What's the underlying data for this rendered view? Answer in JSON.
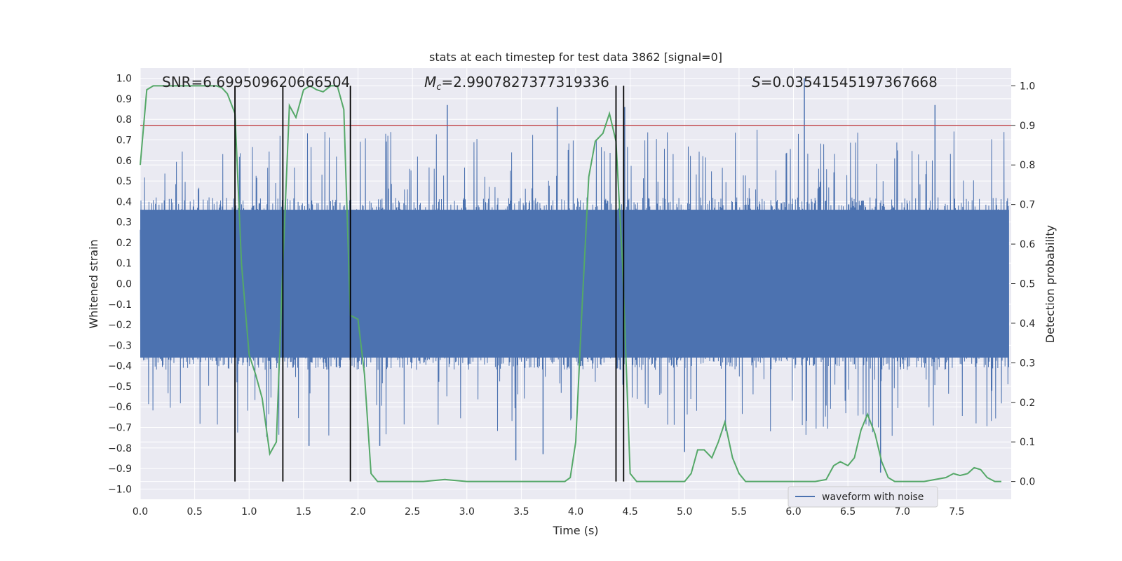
{
  "chart_data": {
    "type": "line",
    "title": "stats at each timestep for test data 3862 [signal=0]",
    "xlabel": "Time (s)",
    "ylabel_left": "Whitened strain",
    "ylabel_right": "Detection probability",
    "xlim": [
      0.0,
      8.0
    ],
    "ylim_left": [
      -1.05,
      1.05
    ],
    "ylim_right": [
      -0.045,
      1.045
    ],
    "x_ticks": [
      0.0,
      0.5,
      1.0,
      1.5,
      2.0,
      2.5,
      3.0,
      3.5,
      4.0,
      4.5,
      5.0,
      5.5,
      6.0,
      6.5,
      7.0,
      7.5
    ],
    "x_tick_labels": [
      "0.0",
      "0.5",
      "1.0",
      "1.5",
      "2.0",
      "2.5",
      "3.0",
      "3.5",
      "4.0",
      "4.5",
      "5.0",
      "5.5",
      "6.0",
      "6.5",
      "7.0",
      "7.5"
    ],
    "y_left_ticks": [
      -1.0,
      -0.9,
      -0.8,
      -0.7,
      -0.6,
      -0.5,
      -0.4,
      -0.3,
      -0.2,
      -0.1,
      0.0,
      0.1,
      0.2,
      0.3,
      0.4,
      0.5,
      0.6,
      0.7,
      0.8,
      0.9,
      1.0
    ],
    "y_left_tick_labels": [
      "−1.0",
      "−0.9",
      "−0.8",
      "−0.7",
      "−0.6",
      "−0.5",
      "−0.4",
      "−0.3",
      "−0.2",
      "−0.1",
      "0.0",
      "0.1",
      "0.2",
      "0.3",
      "0.4",
      "0.5",
      "0.6",
      "0.7",
      "0.8",
      "0.9",
      "1.0"
    ],
    "y_right_ticks": [
      0.0,
      0.1,
      0.2,
      0.3,
      0.4,
      0.5,
      0.6,
      0.7,
      0.8,
      0.9,
      1.0
    ],
    "y_right_tick_labels": [
      "0.0",
      "0.1",
      "0.2",
      "0.3",
      "0.4",
      "0.5",
      "0.6",
      "0.7",
      "0.8",
      "0.9",
      "1.0"
    ],
    "grid": true,
    "legend_position": "bottom-right",
    "annotations": {
      "snr": "SNR=6.699509620666504",
      "mc_symbol": "M",
      "mc_sub": "c",
      "mc_value": "=2.9907827377319336",
      "s_symbol": "S",
      "s_value": "=0.03541545197367668"
    },
    "threshold": {
      "value": 0.9,
      "axis": "right",
      "color": "#c44e52"
    },
    "vertical_lines": [
      0.87,
      1.31,
      1.93,
      4.37,
      4.44
    ],
    "series": [
      {
        "name": "waveform with noise",
        "axis": "left",
        "color": "#4c72b0",
        "kind": "noise",
        "core_amplitude": 0.42,
        "peaks": [
          {
            "t": 2.82,
            "v": 0.87
          },
          {
            "t": 6.1,
            "v": 1.0
          },
          {
            "t": 7.3,
            "v": 0.87
          },
          {
            "t": 3.83,
            "v": 0.86
          },
          {
            "t": 4.45,
            "v": 0.86
          },
          {
            "t": 3.45,
            "v": -0.86
          },
          {
            "t": 6.8,
            "v": -0.92
          },
          {
            "t": 3.7,
            "v": -0.83
          },
          {
            "t": 5.0,
            "v": -0.82
          },
          {
            "t": 1.55,
            "v": -0.79
          },
          {
            "t": 2.2,
            "v": -0.79
          }
        ]
      },
      {
        "name": "",
        "axis": "right",
        "color": "#55a868",
        "x": [
          0.0,
          0.06,
          0.12,
          0.2,
          0.3,
          0.4,
          0.5,
          0.6,
          0.7,
          0.75,
          0.8,
          0.87,
          0.93,
          1.0,
          1.06,
          1.12,
          1.19,
          1.25,
          1.31,
          1.37,
          1.43,
          1.5,
          1.56,
          1.62,
          1.68,
          1.75,
          1.81,
          1.87,
          1.93,
          2.0,
          2.06,
          2.12,
          2.18,
          2.25,
          2.4,
          2.6,
          2.8,
          3.0,
          3.3,
          3.5,
          3.7,
          3.9,
          3.95,
          4.0,
          4.06,
          4.12,
          4.18,
          4.25,
          4.31,
          4.37,
          4.43,
          4.5,
          4.56,
          4.62,
          4.68,
          4.8,
          4.95,
          5.0,
          5.06,
          5.12,
          5.18,
          5.25,
          5.31,
          5.37,
          5.44,
          5.5,
          5.56,
          5.62,
          5.75,
          6.0,
          6.2,
          6.3,
          6.37,
          6.43,
          6.5,
          6.56,
          6.62,
          6.68,
          6.75,
          6.81,
          6.87,
          6.93,
          7.0,
          7.2,
          7.4,
          7.47,
          7.53,
          7.6,
          7.66,
          7.72,
          7.78,
          7.85,
          7.91
        ],
        "y": [
          0.8,
          0.99,
          1.0,
          1.0,
          1.0,
          1.0,
          1.0,
          1.0,
          1.0,
          0.995,
          0.98,
          0.93,
          0.55,
          0.32,
          0.27,
          0.21,
          0.07,
          0.1,
          0.55,
          0.95,
          0.92,
          0.99,
          1.0,
          0.99,
          0.985,
          1.0,
          1.0,
          0.94,
          0.42,
          0.41,
          0.27,
          0.02,
          0.0,
          0.0,
          0.0,
          0.0,
          0.005,
          0.0,
          0.0,
          0.0,
          0.0,
          0.0,
          0.01,
          0.1,
          0.45,
          0.77,
          0.86,
          0.88,
          0.93,
          0.86,
          0.55,
          0.02,
          0.0,
          0.0,
          0.0,
          0.0,
          0.0,
          0.0,
          0.02,
          0.08,
          0.08,
          0.06,
          0.1,
          0.15,
          0.06,
          0.02,
          0.0,
          0.0,
          0.0,
          0.0,
          0.0,
          0.005,
          0.04,
          0.05,
          0.04,
          0.06,
          0.13,
          0.17,
          0.12,
          0.05,
          0.01,
          0.0,
          0.0,
          0.0,
          0.01,
          0.02,
          0.015,
          0.02,
          0.035,
          0.03,
          0.01,
          0.0,
          0.0
        ]
      }
    ]
  }
}
